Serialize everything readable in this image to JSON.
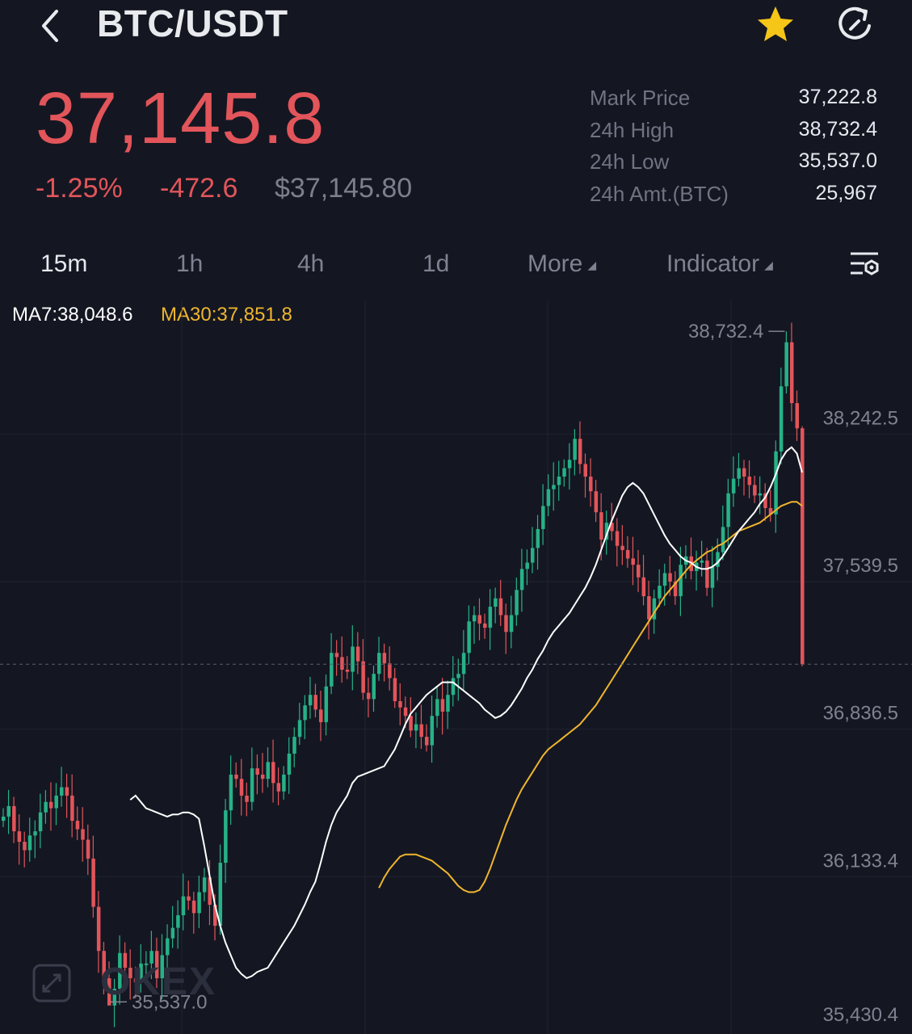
{
  "header": {
    "title": "BTC/USDT",
    "back_icon": "chevron-left-icon",
    "favorite_icon": "star-icon",
    "refresh_icon": "refresh-icon",
    "favorite_color": "#f5c518"
  },
  "ticker": {
    "last_price": "37,145.8",
    "change_pct": "-1.25%",
    "change_abs": "-472.6",
    "usd_value": "$37,145.80",
    "price_color": "#e2555a"
  },
  "stats": [
    {
      "label": "Mark Price",
      "value": "37,222.8"
    },
    {
      "label": "24h High",
      "value": "38,732.4"
    },
    {
      "label": "24h Low",
      "value": "35,537.0"
    },
    {
      "label": "24h Amt.(BTC)",
      "value": "25,967"
    }
  ],
  "tabs": [
    {
      "label": "15m",
      "active": true
    },
    {
      "label": "1h",
      "active": false
    },
    {
      "label": "4h",
      "active": false
    },
    {
      "label": "1d",
      "active": false
    },
    {
      "label": "More",
      "active": false,
      "caret": true
    },
    {
      "label": "Indicator",
      "active": false,
      "caret": true
    }
  ],
  "settings_icon": "chart-settings-icon",
  "ma_legend": {
    "ma7": "MA7:38,048.6",
    "ma30": "MA30:37,851.8"
  },
  "watermark": {
    "logo": "OKEX",
    "expand_icon": "fullscreen-icon"
  },
  "chart_data": {
    "type": "candlestick",
    "ylim": [
      35430.4,
      38879
    ],
    "y_ticks": [
      "38,242.5",
      "37,539.5",
      "36,836.5",
      "36,133.4",
      "35,430.4"
    ],
    "y_tick_values": [
      38242.5,
      37539.5,
      36836.5,
      36133.4,
      35430.4
    ],
    "max_label": "38,732.4",
    "min_label": "35,537.0",
    "max_value": 38732.4,
    "min_value": 35537.0,
    "current_price_line": 37145.8,
    "colors": {
      "up": "#27b187",
      "down": "#e2555a",
      "ma7": "#ffffff",
      "ma30": "#f0b52e"
    },
    "close_prices": [
      36420,
      36470,
      36350,
      36300,
      36260,
      36330,
      36350,
      36440,
      36490,
      36460,
      36520,
      36560,
      36520,
      36400,
      36360,
      36310,
      36220,
      35990,
      35780,
      35650,
      35520,
      35600,
      35770,
      35700,
      35650,
      35630,
      35720,
      35720,
      35780,
      35650,
      35760,
      35840,
      35890,
      35950,
      36040,
      36020,
      35960,
      36060,
      36130,
      36000,
      35900,
      36200,
      36450,
      36620,
      36600,
      36520,
      36490,
      36650,
      36620,
      36600,
      36680,
      36580,
      36540,
      36620,
      36720,
      36800,
      36880,
      36950,
      37000,
      36930,
      36870,
      37040,
      37200,
      37180,
      37120,
      37110,
      37230,
      37160,
      37010,
      36980,
      37100,
      37200,
      37150,
      37080,
      36970,
      36940,
      36900,
      36830,
      36860,
      36800,
      36760,
      36900,
      36980,
      36920,
      37000,
      37080,
      37100,
      37200,
      37350,
      37380,
      37340,
      37320,
      37420,
      37460,
      37380,
      37300,
      37380,
      37500,
      37600,
      37630,
      37700,
      37790,
      37900,
      37980,
      38000,
      38040,
      38080,
      38120,
      38220,
      38100,
      38040,
      37970,
      37870,
      37740,
      37820,
      37780,
      37710,
      37690,
      37650,
      37620,
      37560,
      37470,
      37360,
      37460,
      37520,
      37580,
      37540,
      37470,
      37620,
      37660,
      37590,
      37630,
      37640,
      37510,
      37610,
      37680,
      37800,
      37960,
      38030,
      38080,
      38040,
      38000,
      37950,
      37960,
      37890,
      37860,
      38160,
      38470,
      38680,
      38390,
      38270,
      37145.8
    ],
    "ma7": [
      36500,
      36520,
      36490,
      36460,
      36450,
      36440,
      36430,
      36420,
      36430,
      36430,
      36440,
      36440,
      36430,
      36410,
      36280,
      36140,
      36000,
      35900,
      35820,
      35760,
      35700,
      35670,
      35650,
      35660,
      35680,
      35690,
      35700,
      35740,
      35780,
      35820,
      35860,
      35900,
      35950,
      36000,
      36060,
      36110,
      36200,
      36300,
      36380,
      36440,
      36480,
      36520,
      36580,
      36610,
      36620,
      36630,
      36640,
      36650,
      36660,
      36700,
      36740,
      36800,
      36860,
      36910,
      36940,
      36970,
      37000,
      37020,
      37040,
      37060,
      37060,
      37060,
      37040,
      37020,
      37000,
      36980,
      36960,
      36930,
      36910,
      36890,
      36900,
      36920,
      36950,
      36990,
      37030,
      37080,
      37120,
      37170,
      37210,
      37260,
      37300,
      37330,
      37360,
      37390,
      37430,
      37470,
      37510,
      37560,
      37620,
      37690,
      37760,
      37830,
      37890,
      37950,
      37990,
      38010,
      37990,
      37960,
      37910,
      37860,
      37810,
      37760,
      37720,
      37690,
      37660,
      37640,
      37630,
      37610,
      37600,
      37600,
      37610,
      37630,
      37660,
      37700,
      37740,
      37780,
      37810,
      37840,
      37870,
      37910,
      37940,
      37990,
      38050,
      38120,
      38160,
      38180,
      38150,
      38060
    ],
    "ma30": [
      36080,
      36130,
      36170,
      36200,
      36230,
      36240,
      36240,
      36240,
      36230,
      36220,
      36210,
      36190,
      36170,
      36150,
      36120,
      36090,
      36070,
      36060,
      36060,
      36070,
      36110,
      36170,
      36240,
      36310,
      36380,
      36440,
      36500,
      36550,
      36590,
      36630,
      36670,
      36710,
      36740,
      36760,
      36780,
      36800,
      36820,
      36840,
      36860,
      36890,
      36920,
      36950,
      36990,
      37030,
      37070,
      37110,
      37150,
      37190,
      37230,
      37270,
      37310,
      37350,
      37390,
      37430,
      37470,
      37500,
      37530,
      37560,
      37590,
      37620,
      37640,
      37660,
      37680,
      37690,
      37710,
      37720,
      37740,
      37760,
      37780,
      37790,
      37800,
      37810,
      37820,
      37840,
      37860,
      37880,
      37900,
      37910,
      37920,
      37920,
      37900
    ]
  }
}
